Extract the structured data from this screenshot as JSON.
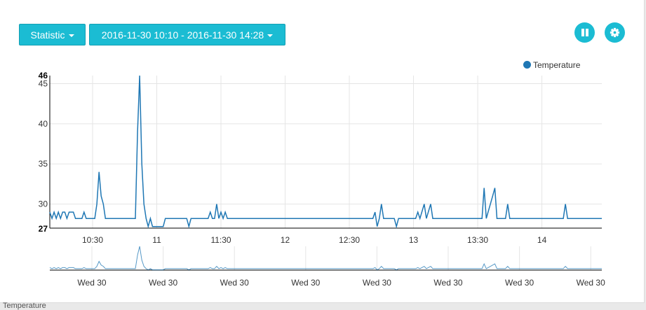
{
  "toolbar": {
    "statistic_label": "Statistic",
    "date_range_label": "2016-11-30 10:10 - 2016-11-30 14:28",
    "pause_icon": "pause-icon",
    "settings_icon": "gear-icon"
  },
  "colors": {
    "accent": "#1bbcd3",
    "series": "#1f77b4",
    "grid": "#e5e5e5"
  },
  "footer": {
    "partial_label": "Temperature"
  },
  "chart_data": {
    "type": "line",
    "legend_position": "top-right",
    "grid": true,
    "x_start": "2016-11-30 10:10",
    "x_end": "2016-11-30 14:28",
    "x_ticks": [
      "10:30",
      "11",
      "11:30",
      "12",
      "12:30",
      "13",
      "13:30",
      "14"
    ],
    "ylim": [
      27,
      46
    ],
    "y_ticks": [
      30,
      35,
      40,
      45
    ],
    "y_extent_labels": [
      "27",
      "46"
    ],
    "context_ticks": [
      "Wed 30",
      "Wed 30",
      "Wed 30",
      "Wed 30",
      "Wed 30",
      "Wed 30",
      "Wed 30",
      "Wed 30"
    ],
    "series": [
      {
        "name": "Temperature",
        "points": [
          [
            "2016-11-30 10:10",
            29
          ],
          [
            "2016-11-30 10:11",
            28.2
          ],
          [
            "2016-11-30 10:12",
            29
          ],
          [
            "2016-11-30 10:13",
            28.2
          ],
          [
            "2016-11-30 10:14",
            29
          ],
          [
            "2016-11-30 10:15",
            28.2
          ],
          [
            "2016-11-30 10:16",
            29
          ],
          [
            "2016-11-30 10:17",
            29
          ],
          [
            "2016-11-30 10:18",
            28.2
          ],
          [
            "2016-11-30 10:19",
            29
          ],
          [
            "2016-11-30 10:21",
            29
          ],
          [
            "2016-11-30 10:22",
            28.2
          ],
          [
            "2016-11-30 10:25",
            28.2
          ],
          [
            "2016-11-30 10:26",
            29
          ],
          [
            "2016-11-30 10:27",
            28.2
          ],
          [
            "2016-11-30 10:31",
            28.2
          ],
          [
            "2016-11-30 10:32",
            30
          ],
          [
            "2016-11-30 10:33",
            34
          ],
          [
            "2016-11-30 10:34",
            31
          ],
          [
            "2016-11-30 10:35",
            30
          ],
          [
            "2016-11-30 10:36",
            28.2
          ],
          [
            "2016-11-30 10:50",
            28.2
          ],
          [
            "2016-11-30 10:51",
            39
          ],
          [
            "2016-11-30 10:52",
            46
          ],
          [
            "2016-11-30 10:53",
            35
          ],
          [
            "2016-11-30 10:54",
            30
          ],
          [
            "2016-11-30 10:55",
            28.2
          ],
          [
            "2016-11-30 10:56",
            27.2
          ],
          [
            "2016-11-30 10:57",
            28.2
          ],
          [
            "2016-11-30 10:58",
            27.2
          ],
          [
            "2016-11-30 11:03",
            27.2
          ],
          [
            "2016-11-30 11:04",
            28.2
          ],
          [
            "2016-11-30 11:14",
            28.2
          ],
          [
            "2016-11-30 11:15",
            27.2
          ],
          [
            "2016-11-30 11:16",
            28.2
          ],
          [
            "2016-11-30 11:24",
            28.2
          ],
          [
            "2016-11-30 11:25",
            29
          ],
          [
            "2016-11-30 11:26",
            28.2
          ],
          [
            "2016-11-30 11:27",
            28.2
          ],
          [
            "2016-11-30 11:28",
            30
          ],
          [
            "2016-11-30 11:29",
            28.2
          ],
          [
            "2016-11-30 11:30",
            29
          ],
          [
            "2016-11-30 11:31",
            28.2
          ],
          [
            "2016-11-30 11:32",
            29
          ],
          [
            "2016-11-30 11:33",
            28.2
          ],
          [
            "2016-11-30 12:41",
            28.2
          ],
          [
            "2016-11-30 12:42",
            29
          ],
          [
            "2016-11-30 12:43",
            27.2
          ],
          [
            "2016-11-30 12:44",
            28.2
          ],
          [
            "2016-11-30 12:45",
            30
          ],
          [
            "2016-11-30 12:46",
            28.2
          ],
          [
            "2016-11-30 12:51",
            28.2
          ],
          [
            "2016-11-30 12:52",
            27.2
          ],
          [
            "2016-11-30 12:53",
            28.2
          ],
          [
            "2016-11-30 13:01",
            28.2
          ],
          [
            "2016-11-30 13:02",
            29
          ],
          [
            "2016-11-30 13:03",
            28.2
          ],
          [
            "2016-11-30 13:05",
            30
          ],
          [
            "2016-11-30 13:06",
            28.2
          ],
          [
            "2016-11-30 13:08",
            30
          ],
          [
            "2016-11-30 13:09",
            28.2
          ],
          [
            "2016-11-30 13:32",
            28.2
          ],
          [
            "2016-11-30 13:33",
            32
          ],
          [
            "2016-11-30 13:34",
            28.2
          ],
          [
            "2016-11-30 13:37",
            31
          ],
          [
            "2016-11-30 13:38",
            32
          ],
          [
            "2016-11-30 13:39",
            28.2
          ],
          [
            "2016-11-30 13:43",
            28.2
          ],
          [
            "2016-11-30 13:44",
            30
          ],
          [
            "2016-11-30 13:45",
            28.2
          ],
          [
            "2016-11-30 14:10",
            28.2
          ],
          [
            "2016-11-30 14:11",
            30
          ],
          [
            "2016-11-30 14:12",
            28.2
          ],
          [
            "2016-11-30 14:28",
            28.2
          ]
        ]
      }
    ]
  }
}
